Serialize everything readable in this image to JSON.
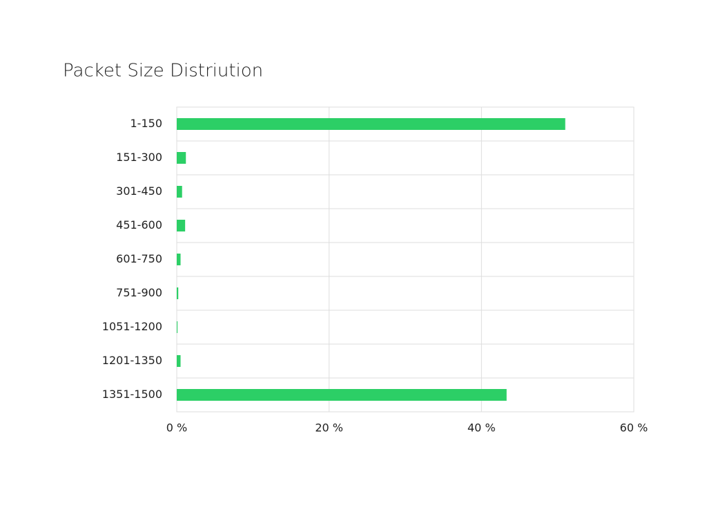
{
  "chart_data": {
    "type": "bar",
    "orientation": "horizontal",
    "title": "Packet Size Distriution",
    "categories": [
      "1-150",
      "151-300",
      "301-450",
      "451-600",
      "601-750",
      "751-900",
      "1051-1200",
      "1201-1350",
      "1351-1500"
    ],
    "values": [
      51,
      1.2,
      0.7,
      1.1,
      0.5,
      0.2,
      0.1,
      0.5,
      43.3
    ],
    "color": "#2ccf66",
    "xlim": [
      0,
      60
    ],
    "xticks": [
      {
        "value": 0,
        "label": "0 %"
      },
      {
        "value": 20,
        "label": "20 %"
      },
      {
        "value": 40,
        "label": "40 %"
      },
      {
        "value": 60,
        "label": "60 %"
      }
    ],
    "grid": true
  }
}
